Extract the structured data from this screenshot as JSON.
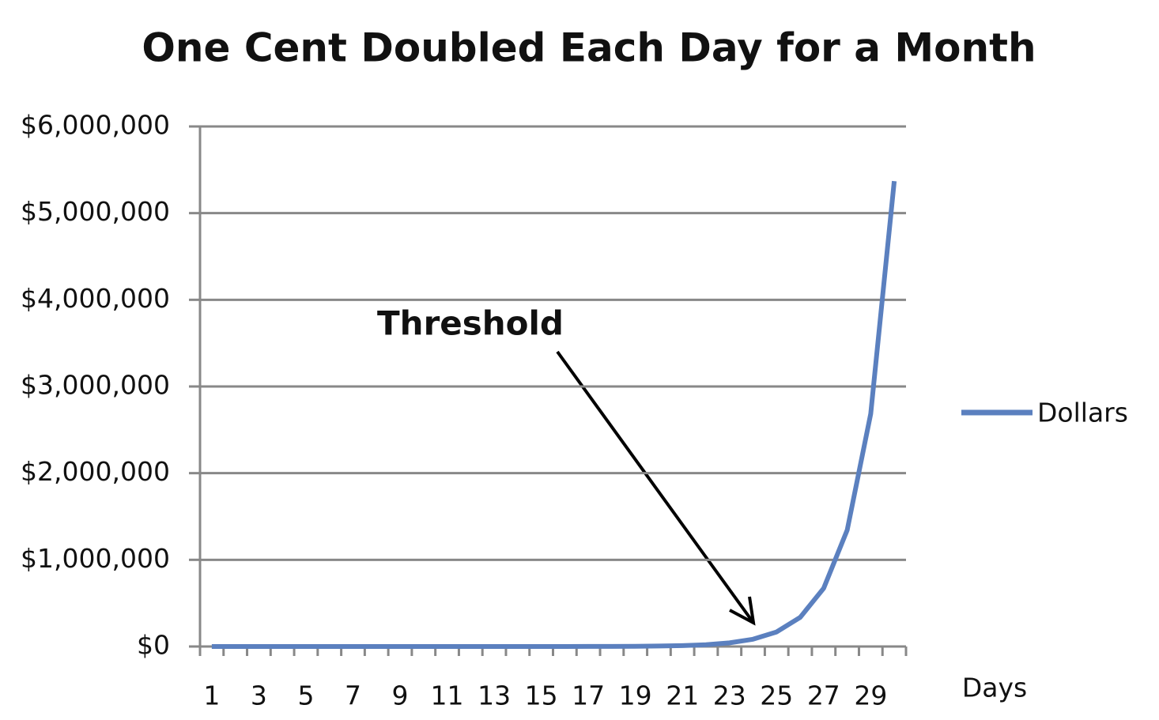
{
  "chart_data": {
    "type": "line",
    "title": "One Cent Doubled Each Day for a Month",
    "x_label": "Days",
    "annotation": "Threshold",
    "categories": [
      "1",
      null,
      "3",
      null,
      "5",
      null,
      "7",
      null,
      "9",
      null,
      "11",
      null,
      "13",
      null,
      "15",
      null,
      "17",
      null,
      "19",
      null,
      "21",
      null,
      "23",
      null,
      "25",
      null,
      "27",
      null,
      "29",
      null
    ],
    "series": [
      {
        "name": "Dollars",
        "color": "#5b80bf",
        "values": [
          0.01,
          0.02,
          0.04,
          0.08,
          0.16,
          0.32,
          0.64,
          1.28,
          2.56,
          5.12,
          10.24,
          20.48,
          40.96,
          81.92,
          163.84,
          327.68,
          655.36,
          1310.72,
          2621.44,
          5242.88,
          10485.76,
          20971.52,
          41943.04,
          83886.08,
          167772.16,
          335544.32,
          671088.64,
          1342177.28,
          2684354.56,
          5368709.12
        ]
      }
    ],
    "ylim": [
      0,
      6000000
    ],
    "yticks": [
      {
        "value": 0,
        "label": "$0"
      },
      {
        "value": 1000000,
        "label": "$1,000,000"
      },
      {
        "value": 2000000,
        "label": "$2,000,000"
      },
      {
        "value": 3000000,
        "label": "$3,000,000"
      },
      {
        "value": 4000000,
        "label": "$4,000,000"
      },
      {
        "value": 5000000,
        "label": "$5,000,000"
      },
      {
        "value": 6000000,
        "label": "$6,000,000"
      }
    ],
    "grid": true,
    "legend": "right"
  }
}
